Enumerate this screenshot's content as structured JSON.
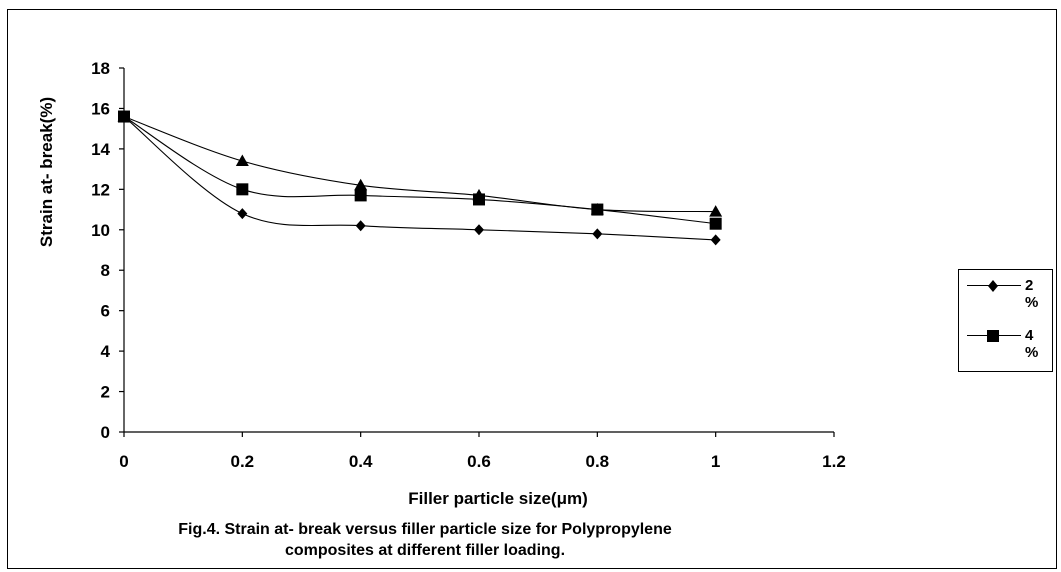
{
  "chart_data": {
    "type": "line",
    "title": "",
    "xlabel": "Filler particle size(μm)",
    "ylabel": "Strain at- break(%)",
    "xlim": [
      0,
      1.2
    ],
    "ylim": [
      0,
      18
    ],
    "x_ticks": [
      "0",
      "0.2",
      "0.4",
      "0.6",
      "0.8",
      "1",
      "1.2"
    ],
    "y_ticks": [
      "0",
      "2",
      "4",
      "6",
      "8",
      "10",
      "12",
      "14",
      "16",
      "18"
    ],
    "grid": false,
    "legend_position": "right",
    "series": [
      {
        "name": "2 %",
        "marker": "diamond",
        "x": [
          0,
          0.2,
          0.4,
          0.6,
          0.8,
          1
        ],
        "y": [
          15.6,
          10.8,
          10.2,
          10.0,
          9.8,
          9.5
        ]
      },
      {
        "name": "4 %",
        "marker": "square",
        "x": [
          0,
          0.2,
          0.4,
          0.6,
          0.8,
          1
        ],
        "y": [
          15.6,
          12.0,
          11.7,
          11.5,
          11.0,
          10.3
        ]
      },
      {
        "name": "",
        "marker": "triangle",
        "x": [
          0,
          0.2,
          0.4,
          0.6,
          0.8,
          1
        ],
        "y": [
          15.6,
          13.4,
          12.2,
          11.7,
          11.0,
          10.9
        ]
      }
    ]
  },
  "caption": {
    "line1": "Fig.4.  Strain at- break versus filler particle size for Polypropylene",
    "line2": "composites at different filler loading."
  },
  "legend": {
    "entries": [
      {
        "label": "2 %",
        "marker": "diamond"
      },
      {
        "label": "4 %",
        "marker": "square"
      }
    ]
  },
  "colors": {
    "line": "#000000",
    "background": "#ffffff"
  }
}
